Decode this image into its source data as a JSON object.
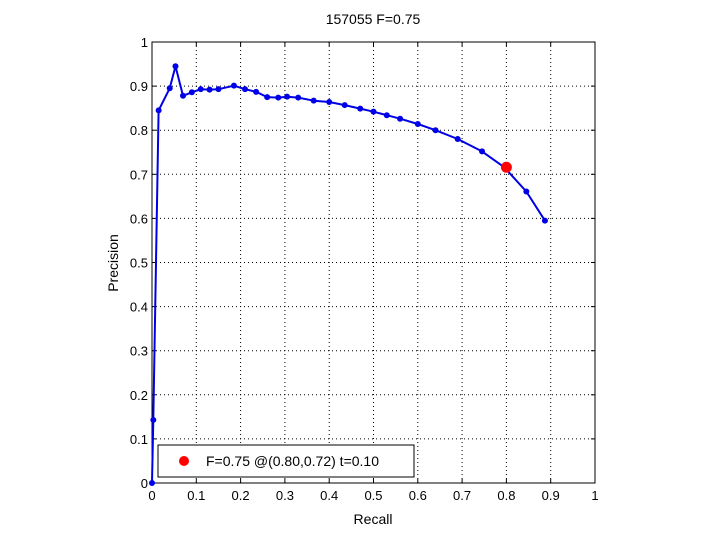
{
  "chart_data": {
    "type": "line",
    "title": "157055 F=0.75",
    "xlabel": "Recall",
    "ylabel": "Precision",
    "xlim": [
      0,
      1
    ],
    "ylim": [
      0,
      1
    ],
    "xticks": [
      "0",
      "0.1",
      "0.2",
      "0.3",
      "0.4",
      "0.5",
      "0.6",
      "0.7",
      "0.8",
      "0.9",
      "1"
    ],
    "yticks": [
      "0",
      "0.1",
      "0.2",
      "0.3",
      "0.4",
      "0.5",
      "0.6",
      "0.7",
      "0.8",
      "0.9",
      "1"
    ],
    "grid": true,
    "legend_position": "bottom-left",
    "colors": {
      "series": "#0000e6",
      "marker": "#ff0000"
    },
    "series": [
      {
        "x": [
          0.0,
          0.003,
          0.015,
          0.04,
          0.053,
          0.07,
          0.09,
          0.11,
          0.13,
          0.15,
          0.185,
          0.21,
          0.235,
          0.26,
          0.285,
          0.305,
          0.33,
          0.365,
          0.4,
          0.435,
          0.47,
          0.5,
          0.53,
          0.56,
          0.6,
          0.64,
          0.69,
          0.745,
          0.795,
          0.845,
          0.887
        ],
        "y": [
          0.0,
          0.143,
          0.845,
          0.895,
          0.945,
          0.878,
          0.886,
          0.893,
          0.892,
          0.893,
          0.901,
          0.893,
          0.887,
          0.875,
          0.874,
          0.876,
          0.874,
          0.867,
          0.864,
          0.857,
          0.849,
          0.842,
          0.834,
          0.826,
          0.814,
          0.8,
          0.78,
          0.752,
          0.716,
          0.661,
          0.595
        ]
      }
    ],
    "highlight": {
      "x": 0.8,
      "y": 0.716
    },
    "legend": {
      "text": "F=0.75 @(0.80,0.72) t=0.10"
    }
  }
}
